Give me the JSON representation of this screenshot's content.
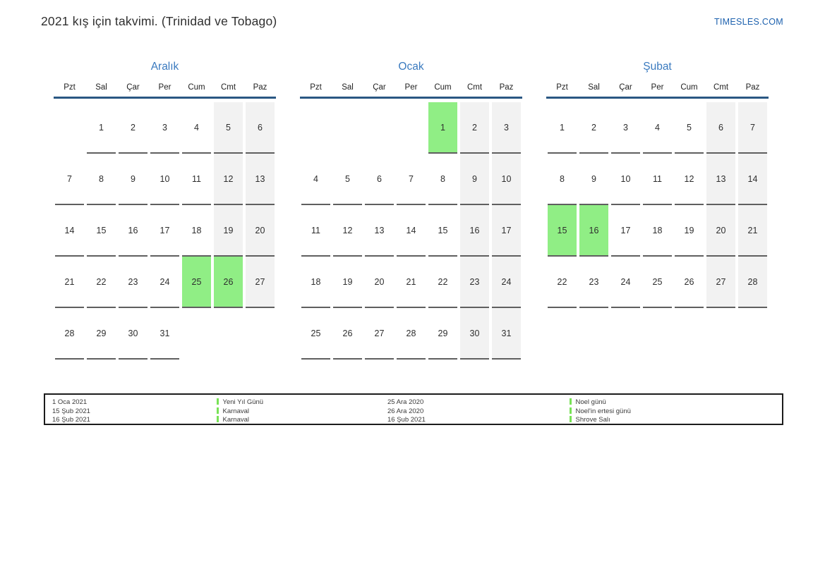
{
  "page": {
    "title": "2021 kış için takvimi. (Trinidad ve Tobago)",
    "site_link": "TIMESLES.COM"
  },
  "weekdays": [
    "Pzt",
    "Sal",
    "Çar",
    "Per",
    "Cum",
    "Cmt",
    "Paz"
  ],
  "months": [
    {
      "name": "Aralık",
      "weeks": [
        [
          "",
          "1",
          "2",
          "3",
          "4",
          "5",
          "6"
        ],
        [
          "7",
          "8",
          "9",
          "10",
          "11",
          "12",
          "13"
        ],
        [
          "14",
          "15",
          "16",
          "17",
          "18",
          "19",
          "20"
        ],
        [
          "21",
          "22",
          "23",
          "24",
          "25",
          "26",
          "27"
        ],
        [
          "28",
          "29",
          "30",
          "31",
          "",
          "",
          ""
        ]
      ],
      "highlighted": [
        "25",
        "26"
      ]
    },
    {
      "name": "Ocak",
      "weeks": [
        [
          "",
          "",
          "",
          "",
          "1",
          "2",
          "3"
        ],
        [
          "4",
          "5",
          "6",
          "7",
          "8",
          "9",
          "10"
        ],
        [
          "11",
          "12",
          "13",
          "14",
          "15",
          "16",
          "17"
        ],
        [
          "18",
          "19",
          "20",
          "21",
          "22",
          "23",
          "24"
        ],
        [
          "25",
          "26",
          "27",
          "28",
          "29",
          "30",
          "31"
        ]
      ],
      "highlighted": [
        "1"
      ]
    },
    {
      "name": "Şubat",
      "weeks": [
        [
          "1",
          "2",
          "3",
          "4",
          "5",
          "6",
          "7"
        ],
        [
          "8",
          "9",
          "10",
          "11",
          "12",
          "13",
          "14"
        ],
        [
          "15",
          "16",
          "17",
          "18",
          "19",
          "20",
          "21"
        ],
        [
          "22",
          "23",
          "24",
          "25",
          "26",
          "27",
          "28"
        ]
      ],
      "highlighted": [
        "15",
        "16"
      ]
    }
  ],
  "legend": {
    "groups": [
      {
        "entries": [
          {
            "date": "1 Oca 2021",
            "name": "Yeni Yıl Günü"
          },
          {
            "date": "15 Şub 2021",
            "name": "Karnaval"
          },
          {
            "date": "16 Şub 2021",
            "name": "Karnaval"
          }
        ]
      },
      {
        "entries": [
          {
            "date": "25 Ara 2020",
            "name": "Noel günü"
          },
          {
            "date": "26 Ara 2020",
            "name": "Noel'in ertesi günü"
          },
          {
            "date": "16 Şub 2021",
            "name": "Shrove Salı"
          }
        ]
      }
    ]
  },
  "colors": {
    "accent_blue": "#3a7abf",
    "header_line_blue": "#2a5783",
    "link_blue": "#1d61ae",
    "holiday_green": "#90ee85",
    "weekend_gray": "#f2f2f2",
    "underline_gray": "#5f5f5f",
    "legend_marker_green": "#79e257"
  }
}
